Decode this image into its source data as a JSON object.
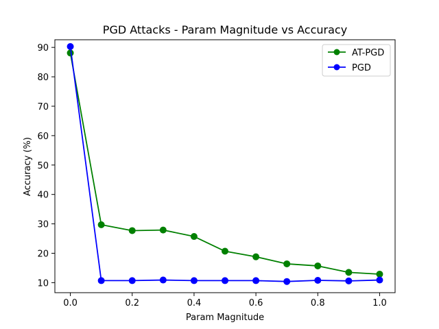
{
  "chart_data": {
    "type": "line",
    "title": "PGD Attacks - Param Magnitude vs Accuracy",
    "xlabel": "Param Magnitude",
    "ylabel": "Accuracy (%)",
    "xlim": [
      -0.05,
      1.05
    ],
    "ylim": [
      6.6,
      92.6
    ],
    "xticks": [
      0.0,
      0.2,
      0.4,
      0.6,
      0.8,
      1.0
    ],
    "xtick_labels": [
      "0.0",
      "0.2",
      "0.4",
      "0.6",
      "0.8",
      "1.0"
    ],
    "yticks": [
      10,
      20,
      30,
      40,
      50,
      60,
      70,
      80,
      90
    ],
    "ytick_labels": [
      "10",
      "20",
      "30",
      "40",
      "50",
      "60",
      "70",
      "80",
      "90"
    ],
    "grid": false,
    "legend_position": "top-right",
    "x": [
      0.0,
      0.1,
      0.2,
      0.3,
      0.4,
      0.5,
      0.6,
      0.7,
      0.8,
      0.9,
      1.0
    ],
    "series": [
      {
        "name": "AT-PGD",
        "color": "#008000",
        "marker": "circle",
        "values": [
          88.1,
          29.7,
          27.7,
          27.9,
          25.7,
          20.7,
          18.8,
          16.4,
          15.7,
          13.5,
          12.9
        ]
      },
      {
        "name": "PGD",
        "color": "#0000ff",
        "marker": "circle",
        "values": [
          90.3,
          10.7,
          10.7,
          10.9,
          10.7,
          10.7,
          10.7,
          10.4,
          10.8,
          10.6,
          10.9
        ]
      }
    ]
  }
}
